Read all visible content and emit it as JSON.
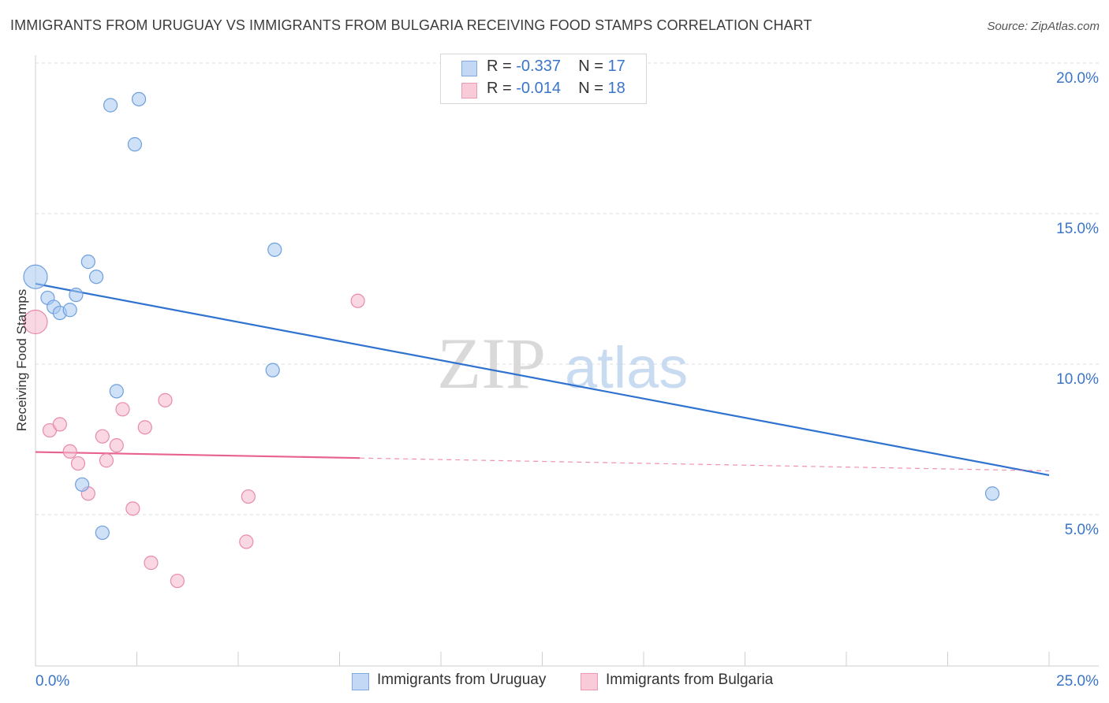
{
  "title": "IMMIGRANTS FROM URUGUAY VS IMMIGRANTS FROM BULGARIA RECEIVING FOOD STAMPS CORRELATION CHART",
  "source": "Source: ZipAtlas.com",
  "watermark": {
    "zip": "ZIP",
    "atlas": "atlas"
  },
  "legend": {
    "rows": [
      {
        "r_label": "R = ",
        "r_value": "-0.337",
        "n_label": "N = ",
        "n_value": "17"
      },
      {
        "r_label": "R = ",
        "r_value": "-0.014",
        "n_label": "N = ",
        "n_value": "18"
      }
    ]
  },
  "chart_data": {
    "type": "scatter",
    "title": "IMMIGRANTS FROM URUGUAY VS IMMIGRANTS FROM BULGARIA RECEIVING FOOD STAMPS CORRELATION CHART",
    "xlabel": "",
    "ylabel": "Receiving Food Stamps",
    "xlim": [
      0,
      25
    ],
    "ylim": [
      0,
      20.5
    ],
    "x_tick_labels": [
      "0.0%",
      "25.0%"
    ],
    "y_ticks": [
      5,
      10,
      15,
      20
    ],
    "y_tick_labels": [
      "5.0%",
      "10.0%",
      "15.0%",
      "20.0%"
    ],
    "grid": true,
    "colors": {
      "uruguay": "#a8c8f0",
      "uruguay_line": "#2f72d0",
      "bulgaria": "#f5b8cc",
      "bulgaria_line": "#e8628f"
    },
    "series": [
      {
        "name": "Immigrants from Uruguay",
        "points": [
          {
            "x": 0.0,
            "y": 12.9
          },
          {
            "x": 0.3,
            "y": 12.2
          },
          {
            "x": 0.45,
            "y": 11.9
          },
          {
            "x": 0.6,
            "y": 11.7
          },
          {
            "x": 0.85,
            "y": 11.8
          },
          {
            "x": 1.0,
            "y": 12.3
          },
          {
            "x": 1.3,
            "y": 13.4
          },
          {
            "x": 1.5,
            "y": 12.9
          },
          {
            "x": 1.85,
            "y": 18.6
          },
          {
            "x": 2.55,
            "y": 18.8
          },
          {
            "x": 2.45,
            "y": 17.3
          },
          {
            "x": 5.9,
            "y": 13.8
          },
          {
            "x": 5.85,
            "y": 9.8
          },
          {
            "x": 2.0,
            "y": 9.1
          },
          {
            "x": 1.15,
            "y": 6.0
          },
          {
            "x": 1.65,
            "y": 4.4
          },
          {
            "x": 23.6,
            "y": 5.7
          }
        ],
        "trend": {
          "x": [
            0,
            25
          ],
          "y": [
            12.67,
            6.31
          ]
        }
      },
      {
        "name": "Immigrants from Bulgaria",
        "points": [
          {
            "x": 0.0,
            "y": 11.4
          },
          {
            "x": 0.35,
            "y": 7.8
          },
          {
            "x": 0.6,
            "y": 8.0
          },
          {
            "x": 0.85,
            "y": 7.1
          },
          {
            "x": 1.05,
            "y": 6.7
          },
          {
            "x": 1.3,
            "y": 5.7
          },
          {
            "x": 1.65,
            "y": 7.6
          },
          {
            "x": 1.75,
            "y": 6.8
          },
          {
            "x": 2.0,
            "y": 7.3
          },
          {
            "x": 2.15,
            "y": 8.5
          },
          {
            "x": 2.4,
            "y": 5.2
          },
          {
            "x": 2.7,
            "y": 7.9
          },
          {
            "x": 3.2,
            "y": 8.8
          },
          {
            "x": 2.85,
            "y": 3.4
          },
          {
            "x": 3.5,
            "y": 2.8
          },
          {
            "x": 5.2,
            "y": 4.1
          },
          {
            "x": 5.25,
            "y": 5.6
          },
          {
            "x": 7.95,
            "y": 12.1
          }
        ],
        "trend": {
          "x": [
            0,
            8
          ],
          "y": [
            7.08,
            6.88
          ],
          "dashed_to_x": 25
        }
      }
    ],
    "legend_labels": [
      "Immigrants from Uruguay",
      "Immigrants from Bulgaria"
    ]
  }
}
